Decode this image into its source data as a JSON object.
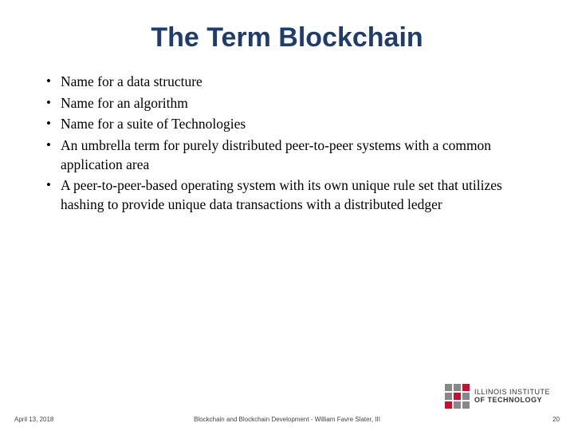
{
  "title": "The Term Blockchain",
  "title_color": "#1f3c6e",
  "title_fontsize": 34,
  "body_fontsize": 17.5,
  "body_color": "#000000",
  "background_color": "#ffffff",
  "bullets": [
    "Name for a data structure",
    "Name for an algorithm",
    "Name for a suite of Technologies",
    "An umbrella term for purely distributed peer-to-peer systems with a common application area",
    "A peer-to-peer-based operating system with its own unique rule set that utilizes hashing to provide unique data transactions with a distributed ledger"
  ],
  "footer": {
    "date": "April 13, 2018",
    "center": "Blockchain and Blockchain Development - William Favre Slater, III",
    "page": "20",
    "fontsize": 8,
    "color": "#444444"
  },
  "logo": {
    "line1": "ILLINOIS INSTITUTE",
    "line2": "OF TECHNOLOGY",
    "mark_colors": {
      "red": "#c8102e",
      "gray": "#888888"
    }
  }
}
